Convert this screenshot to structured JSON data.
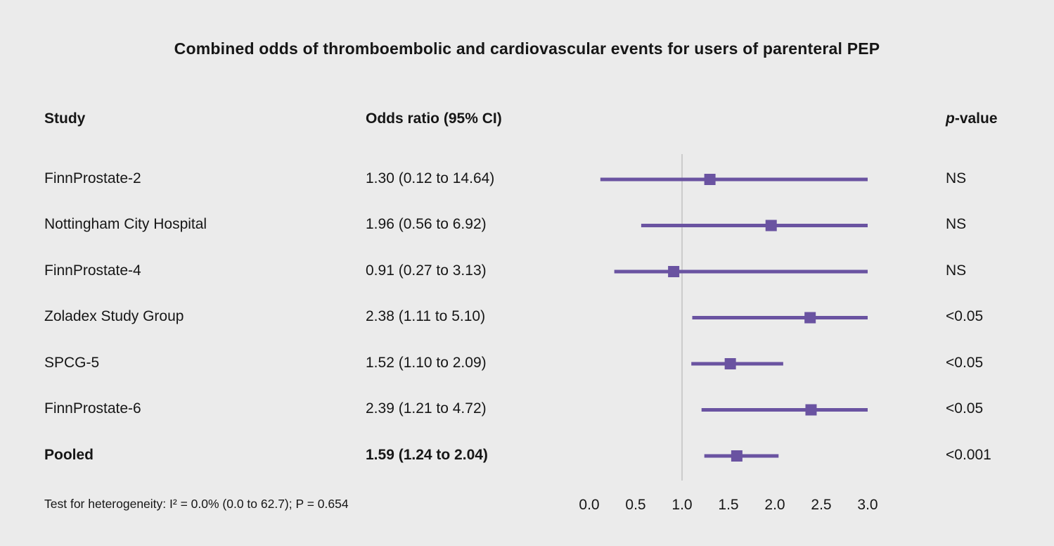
{
  "title": "Combined odds of thromboembolic and cardiovascular events for users of parenteral PEP",
  "columns": {
    "study": "Study",
    "odds_ratio": "Odds ratio (95% CI)",
    "pvalue_italic": "p",
    "pvalue_rest": "-value"
  },
  "footer": "Test for heterogeneity: I² = 0.0% (0.0 to 62.7); P = 0.654",
  "colors": {
    "accent": "#6a53a1",
    "background": "#ebebeb",
    "reference_line": "#cccccc",
    "text": "#161616"
  },
  "chart_data": {
    "type": "forest",
    "title": "Combined odds of thromboembolic and cardiovascular events for users of parenteral PEP",
    "xlim": [
      0,
      3
    ],
    "reference_line": 1.0,
    "tick_labels": [
      "0.0",
      "0.5",
      "1.0",
      "1.5",
      "2.0",
      "2.5",
      "3.0"
    ],
    "studies": [
      {
        "name": "FinnProstate-2",
        "or_text": "1.30 (0.12 to 14.64)",
        "or": 1.3,
        "ci_low": 0.12,
        "ci_high": 14.64,
        "p": "NS"
      },
      {
        "name": "Nottingham City Hospital",
        "or_text": "1.96 (0.56 to 6.92)",
        "or": 1.96,
        "ci_low": 0.56,
        "ci_high": 6.92,
        "p": "NS"
      },
      {
        "name": "FinnProstate-4",
        "or_text": "0.91 (0.27 to 3.13)",
        "or": 0.91,
        "ci_low": 0.27,
        "ci_high": 3.13,
        "p": "NS"
      },
      {
        "name": "Zoladex Study Group",
        "or_text": "2.38 (1.11 to 5.10)",
        "or": 2.38,
        "ci_low": 1.11,
        "ci_high": 5.1,
        "p": "<0.05"
      },
      {
        "name": "SPCG-5",
        "or_text": "1.52 (1.10 to 2.09)",
        "or": 1.52,
        "ci_low": 1.1,
        "ci_high": 2.09,
        "p": "<0.05"
      },
      {
        "name": "FinnProstate-6",
        "or_text": "2.39 (1.21 to 4.72)",
        "or": 2.39,
        "ci_low": 1.21,
        "ci_high": 4.72,
        "p": "<0.05"
      },
      {
        "name": "Pooled",
        "or_text": "1.59 (1.24 to 2.04)",
        "or": 1.59,
        "ci_low": 1.24,
        "ci_high": 2.04,
        "p": "<0.001",
        "pooled": true
      }
    ]
  }
}
